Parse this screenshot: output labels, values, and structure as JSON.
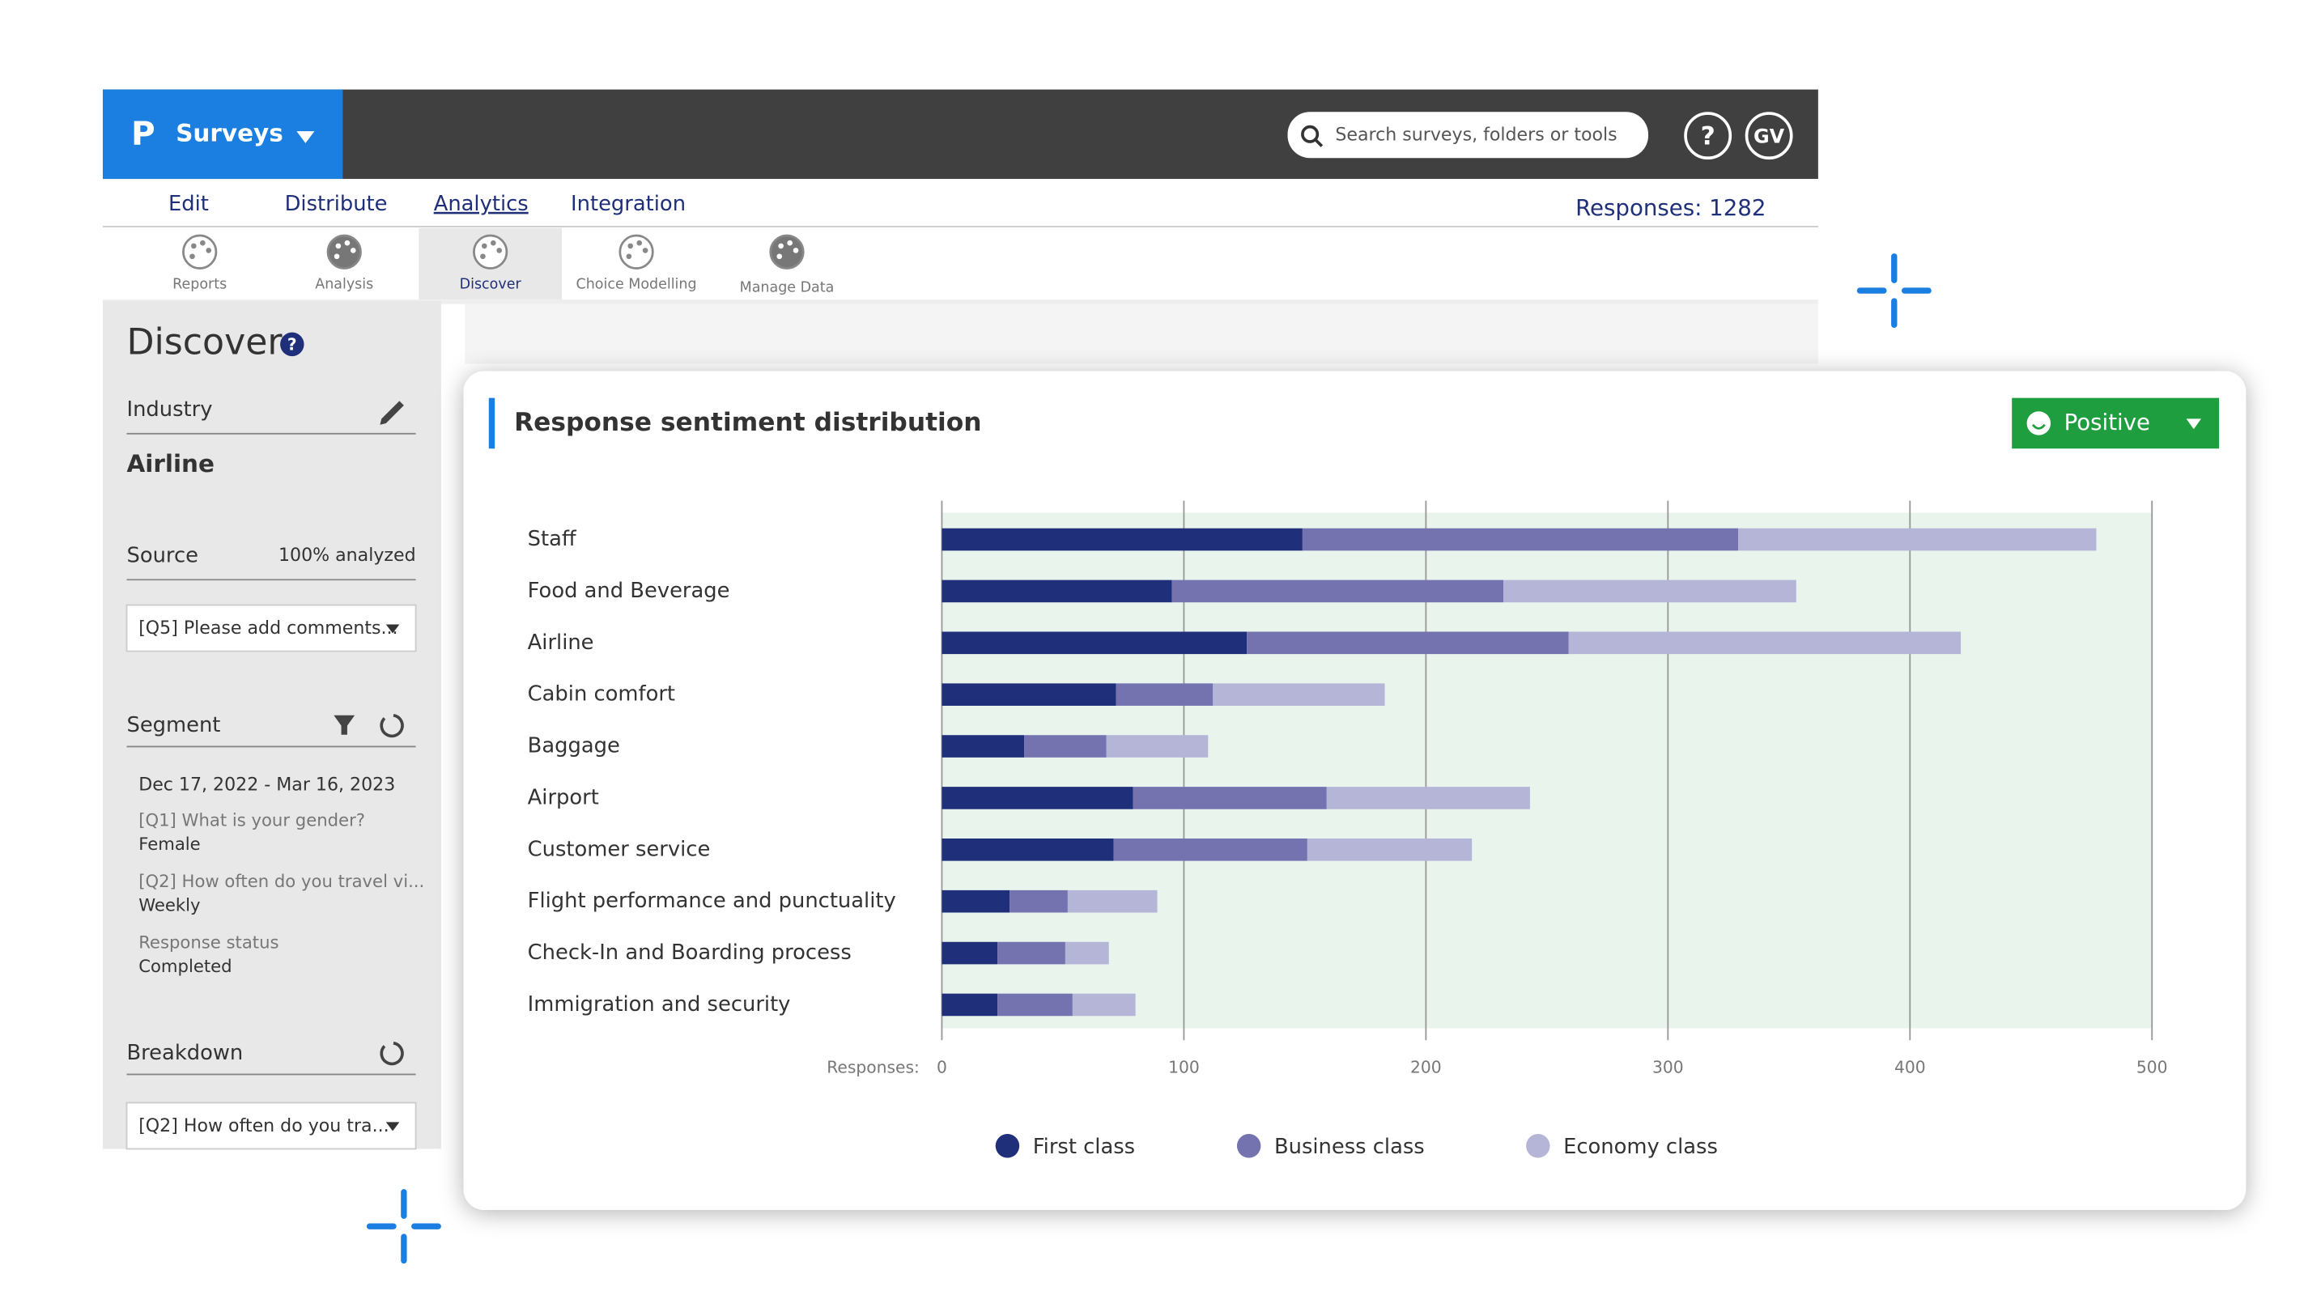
{
  "header": {
    "logo": "P",
    "app": "Surveys",
    "search_placeholder": "Search surveys, folders or tools",
    "help": "?",
    "user": "GV"
  },
  "nav": {
    "tabs": [
      "Edit",
      "Distribute",
      "Analytics",
      "Integration"
    ],
    "responses": "Responses: 1282"
  },
  "tools": [
    "Reports",
    "Analysis",
    "Discover",
    "Choice Modelling",
    "Manage Data"
  ],
  "sidebar": {
    "title": "Discover",
    "help": "?",
    "industry_label": "Industry",
    "industry": "Airline",
    "source_label": "Source",
    "source_status": "100% analyzed",
    "source_select": "[Q5] Please add comments...",
    "segment_label": "Segment",
    "date_range": "Dec 17, 2022 - Mar 16, 2023",
    "filters": [
      {
        "question": "[Q1] What is your gender?",
        "answer": "Female"
      },
      {
        "question": "[Q2] How often do you  travel vi...",
        "answer": "Weekly"
      },
      {
        "question": "Response status",
        "answer": "Completed"
      }
    ],
    "breakdown_label": "Breakdown",
    "breakdown_select": "[Q2] How often do you  tra..."
  },
  "card": {
    "sentiment": "Positive"
  },
  "chart_data": {
    "type": "bar",
    "orientation": "horizontal",
    "stacked": true,
    "title": "Response sentiment distribution",
    "categories": [
      "Staff",
      "Food and Beverage",
      "Airline",
      "Cabin comfort",
      "Baggage",
      "Airport",
      "Customer service",
      "Flight performance and punctuality",
      "Check-In and Boarding process",
      "Immigration and security"
    ],
    "series": [
      {
        "name": "First class",
        "color": "#1f2f7a",
        "values": [
          149,
          95,
          126,
          72,
          34,
          79,
          71,
          28,
          23,
          23
        ]
      },
      {
        "name": "Business class",
        "color": "#7473b0",
        "values": [
          180,
          137,
          133,
          40,
          34,
          80,
          80,
          24,
          28,
          31
        ]
      },
      {
        "name": "Economy class",
        "color": "#b5b5d8",
        "values": [
          148,
          121,
          162,
          71,
          42,
          84,
          68,
          37,
          18,
          26
        ]
      }
    ],
    "xlim": [
      0,
      500
    ],
    "xticks": [
      0,
      100,
      200,
      300,
      400,
      500
    ],
    "x_label": "Responses:",
    "grid": true
  }
}
